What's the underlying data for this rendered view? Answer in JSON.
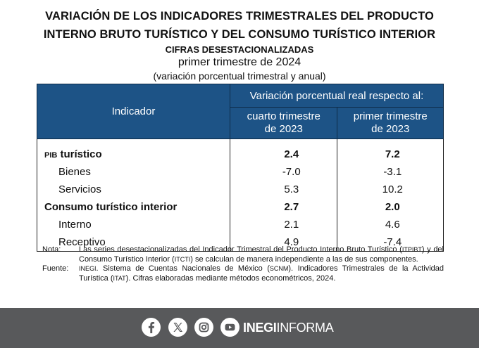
{
  "header": {
    "title_line1": "VARIACIÓN DE LOS INDICADORES TRIMESTRALES DEL PRODUCTO",
    "title_line2": "INTERNO BRUTO TURÍSTICO Y DEL CONSUMO TURÍSTICO INTERIOR",
    "subtitle": "CIFRAS DESESTACIONALIZADAS",
    "period": "primer trimestre de 2024",
    "unit": "(variación porcentual trimestral y anual)"
  },
  "table": {
    "col_indicator": "Indicador",
    "col_group": "Variación porcentual real respecto al:",
    "col1_line1": "cuarto trimestre",
    "col1_line2": "de 2023",
    "col2_line1": "primer trimestre",
    "col2_line2": "de 2023",
    "rows": [
      {
        "label_prefix": "PIB",
        "label": " turístico",
        "q4_2023": "2.4",
        "q1_2023": "7.2"
      },
      {
        "label": "Bienes",
        "q4_2023": "-7.0",
        "q1_2023": "-3.1"
      },
      {
        "label": "Servicios",
        "q4_2023": "5.3",
        "q1_2023": "10.2"
      },
      {
        "label": "Consumo turístico interior",
        "q4_2023": "2.7",
        "q1_2023": "2.0"
      },
      {
        "label": "Interno",
        "q4_2023": "2.1",
        "q1_2023": "4.6"
      },
      {
        "label": "Receptivo",
        "q4_2023": "4.9",
        "q1_2023": "-7.4"
      }
    ]
  },
  "notes": {
    "nota_label": "Nota:",
    "nota_text_a": "Las series desestacionalizadas del Indicador Trimestral del Producto Interno Bruto Turístico (",
    "nota_abbr1": "ITPIBT",
    "nota_text_b": ") y del Consumo Turístico Interior (",
    "nota_abbr2": "ITCTI",
    "nota_text_c": ") se calculan de manera independiente a las de sus componentes.",
    "fuente_label": "Fuente:",
    "fuente_abbr1": "INEGI",
    "fuente_text_a": ". Sistema de Cuentas Nacionales de México (",
    "fuente_abbr2": "SCNM",
    "fuente_text_b": "). Indicadores Trimestrales de la Actividad Turística (",
    "fuente_abbr3": "ITAT",
    "fuente_text_c": "). Cifras elaboradas mediante métodos econométricos, 2024."
  },
  "footer": {
    "brand_bold": "INEGI",
    "brand_light": "INFORMA",
    "icons": [
      "facebook-icon",
      "x-icon",
      "instagram-icon",
      "youtube-icon"
    ],
    "background": "#58595b"
  },
  "colors": {
    "header_blue": "#1d5386"
  }
}
